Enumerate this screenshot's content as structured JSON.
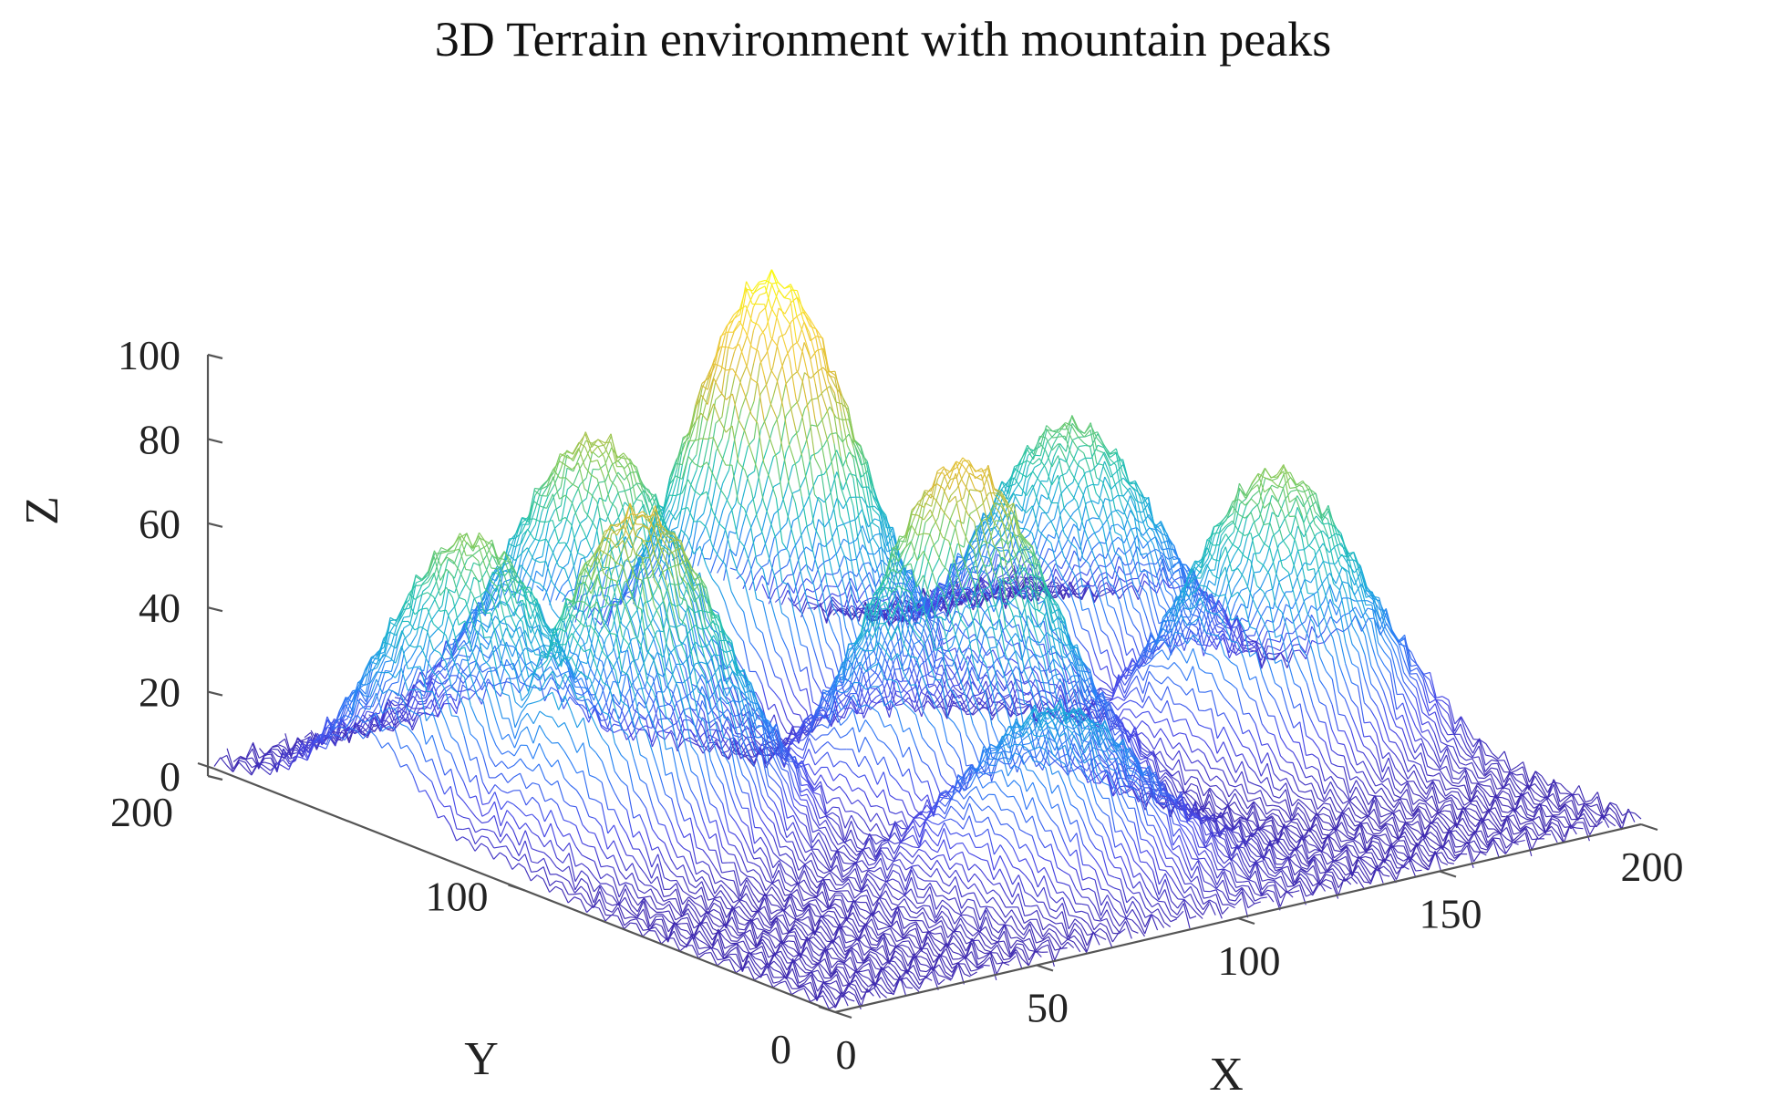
{
  "chart_data": {
    "type": "surface",
    "title": "3D Terrain environment with mountain peaks",
    "xlabel": "X",
    "ylabel": "Y",
    "zlabel": "Z",
    "xlim": [
      0,
      200
    ],
    "ylim": [
      0,
      200
    ],
    "zlim": [
      0,
      100
    ],
    "x_ticks": [
      "0",
      "50",
      "100",
      "150",
      "200"
    ],
    "y_ticks": [
      "0",
      "100",
      "200"
    ],
    "z_ticks": [
      "0",
      "20",
      "40",
      "60",
      "80",
      "100"
    ],
    "grid": false,
    "legend": "none",
    "colormap": "parula",
    "colormap_stops": [
      "#3e26a8",
      "#4748e8",
      "#2b7ff6",
      "#1aa9dd",
      "#25c3ab",
      "#7fcb5f",
      "#d8ba35",
      "#f7d13d",
      "#f9fb0e"
    ],
    "peaks": [
      {
        "x": 25,
        "y": 150,
        "height": 62
      },
      {
        "x": 40,
        "y": 115,
        "height": 75
      },
      {
        "x": 75,
        "y": 175,
        "height": 67
      },
      {
        "x": 115,
        "y": 170,
        "height": 98
      },
      {
        "x": 105,
        "y": 95,
        "height": 78
      },
      {
        "x": 90,
        "y": 45,
        "height": 37
      },
      {
        "x": 170,
        "y": 145,
        "height": 58
      },
      {
        "x": 175,
        "y": 85,
        "height": 63
      }
    ],
    "base_noise_amplitude": 3
  }
}
